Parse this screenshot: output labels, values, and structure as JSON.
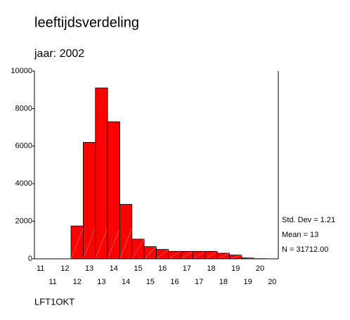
{
  "chart_data": {
    "type": "histogram",
    "title": "leeftijdsverdeling",
    "subtitle": "jaar: 2002",
    "x_label": "LFT1OKT",
    "categories": [
      "11",
      "11",
      "12",
      "12",
      "13",
      "13",
      "14",
      "14",
      "15",
      "15",
      "16",
      "16",
      "17",
      "17",
      "18",
      "18",
      "19",
      "19",
      "20",
      "20"
    ],
    "values": [
      0,
      0,
      0,
      1750,
      6200,
      9100,
      7300,
      2900,
      1050,
      650,
      500,
      400,
      400,
      400,
      400,
      300,
      200,
      50,
      10,
      0
    ],
    "color": "#ff0000",
    "ylim": [
      0,
      10000
    ],
    "yticks": [
      0,
      2000,
      4000,
      6000,
      8000,
      10000
    ],
    "stats": [
      "Std. Dev = 1.21",
      "Mean = 13",
      "N = 31712.00"
    ]
  }
}
